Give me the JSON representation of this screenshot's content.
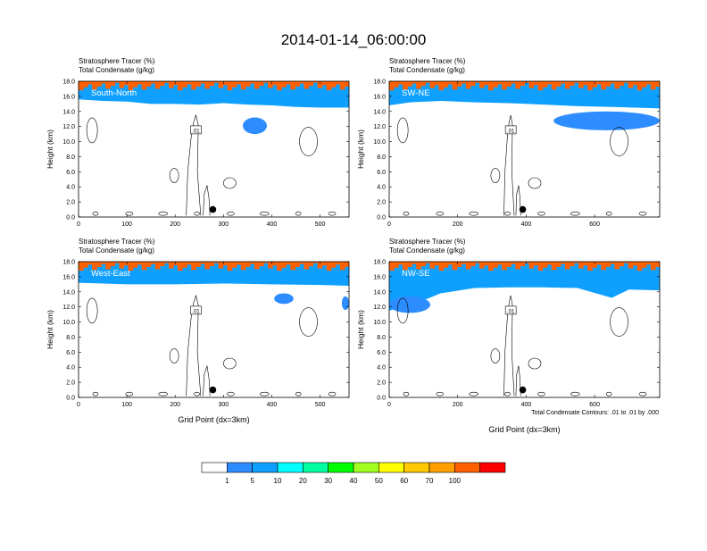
{
  "title": "2014-01-14_06:00:00",
  "field_labels": [
    "Stratosphere Tracer   (%)",
    "Total Condensate   (g/kg)"
  ],
  "ylabel": "Height (km)",
  "xlabel": "Grid Point (dx=3km)",
  "contour_note": "Total Condensate Contours: .01 to .01 by .000",
  "colorbar": {
    "labels": [
      "1",
      "5",
      "10",
      "20",
      "30",
      "40",
      "50",
      "60",
      "70",
      "100"
    ],
    "colors": [
      "#ffffff",
      "#2d8cff",
      "#0fa0ff",
      "#00ffff",
      "#00ffa0",
      "#00ff00",
      "#a0ff20",
      "#ffff00",
      "#ffc800",
      "#ffa000",
      "#ff6000",
      "#ff0000"
    ]
  },
  "contour_label": ".01",
  "chart_data": [
    {
      "type": "heatmap",
      "panel_label": "South-North",
      "xlim": [
        0,
        560
      ],
      "xticks": [
        "0",
        "100",
        "200",
        "300",
        "400",
        "500"
      ],
      "ylim": [
        0,
        18
      ],
      "yticks": [
        "0.0",
        "2.0",
        "4.0",
        "6.0",
        "8.0",
        "10.0",
        "12.0",
        "14.0",
        "16.0",
        "18.0"
      ],
      "marker": {
        "x": 278,
        "y": 1.0
      },
      "tropopause_height": [
        [
          0,
          15.6
        ],
        [
          50,
          15.4
        ],
        [
          100,
          15.3
        ],
        [
          150,
          15.0
        ],
        [
          200,
          15.0
        ],
        [
          250,
          14.9
        ],
        [
          300,
          15.1
        ],
        [
          350,
          14.9
        ],
        [
          400,
          14.8
        ],
        [
          450,
          14.6
        ],
        [
          500,
          14.5
        ],
        [
          560,
          14.5
        ]
      ],
      "blue_patches": [
        {
          "x": [
            340,
            390
          ],
          "y": [
            11.0,
            13.2
          ]
        }
      ]
    },
    {
      "type": "heatmap",
      "panel_label": "SW-NE",
      "xlim": [
        0,
        790
      ],
      "xticks": [
        "0",
        "200",
        "400",
        "600"
      ],
      "ylim": [
        0,
        18
      ],
      "yticks": [
        "0.0",
        "2.0",
        "4.0",
        "6.0",
        "8.0",
        "10.0",
        "12.0",
        "14.0",
        "16.0",
        "18.0"
      ],
      "marker": {
        "x": 390,
        "y": 1.0
      },
      "tropopause_height": [
        [
          0,
          14.8
        ],
        [
          60,
          15.2
        ],
        [
          150,
          15.4
        ],
        [
          250,
          15.2
        ],
        [
          350,
          15.1
        ],
        [
          450,
          14.9
        ],
        [
          550,
          14.7
        ],
        [
          650,
          14.6
        ],
        [
          790,
          14.4
        ]
      ],
      "blue_patches": [
        {
          "x": [
            480,
            790
          ],
          "y": [
            11.5,
            14.0
          ]
        }
      ]
    },
    {
      "type": "heatmap",
      "panel_label": "West-East",
      "xlim": [
        0,
        560
      ],
      "xticks": [
        "0",
        "100",
        "200",
        "300",
        "400",
        "500"
      ],
      "ylim": [
        0,
        18
      ],
      "yticks": [
        "0.0",
        "2.0",
        "4.0",
        "6.0",
        "8.0",
        "10.0",
        "12.0",
        "14.0",
        "16.0",
        "18.0"
      ],
      "marker": {
        "x": 278,
        "y": 1.0
      },
      "tropopause_height": [
        [
          0,
          15.2
        ],
        [
          100,
          15.0
        ],
        [
          200,
          15.0
        ],
        [
          300,
          15.1
        ],
        [
          400,
          15.0
        ],
        [
          500,
          14.9
        ],
        [
          560,
          14.8
        ]
      ],
      "blue_patches": [
        {
          "x": [
            405,
            445
          ],
          "y": [
            12.4,
            13.8
          ]
        },
        {
          "x": [
            545,
            560
          ],
          "y": [
            11.6,
            13.4
          ]
        }
      ]
    },
    {
      "type": "heatmap",
      "panel_label": "NW-SE",
      "xlim": [
        0,
        790
      ],
      "xticks": [
        "0",
        "200",
        "400",
        "600"
      ],
      "ylim": [
        0,
        18
      ],
      "yticks": [
        "0.0",
        "2.0",
        "4.0",
        "6.0",
        "8.0",
        "10.0",
        "12.0",
        "14.0",
        "16.0",
        "18.0"
      ],
      "marker": {
        "x": 390,
        "y": 1.0
      },
      "tropopause_height": [
        [
          0,
          11.5
        ],
        [
          80,
          12.5
        ],
        [
          150,
          13.8
        ],
        [
          250,
          14.5
        ],
        [
          350,
          14.6
        ],
        [
          450,
          14.6
        ],
        [
          550,
          14.5
        ],
        [
          650,
          13.2
        ],
        [
          700,
          14.3
        ],
        [
          790,
          14.2
        ]
      ],
      "blue_patches": [
        {
          "x": [
            0,
            120
          ],
          "y": [
            11.2,
            13.4
          ]
        }
      ]
    }
  ]
}
